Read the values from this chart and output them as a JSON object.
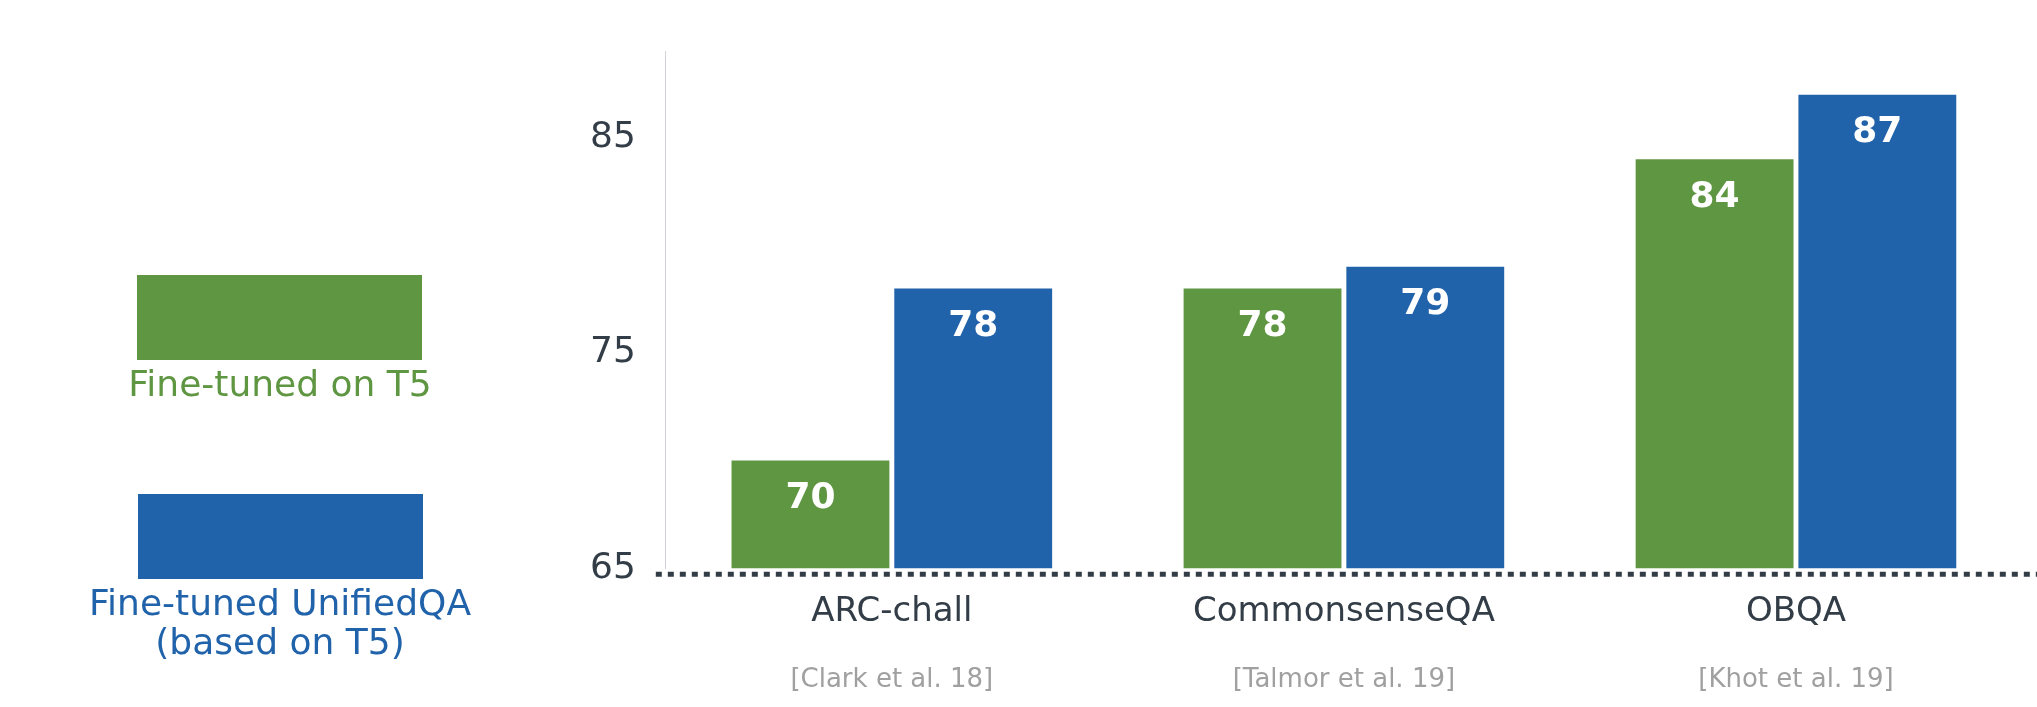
{
  "chart_data": {
    "type": "bar",
    "categories": [
      "ARC-chall",
      "CommonsenseQA",
      "OBQA"
    ],
    "series": [
      {
        "name": "Fine-tuned on T5",
        "color": "#5f9642",
        "values": [
          70,
          78,
          84
        ]
      },
      {
        "name": "Fine-tuned UnifiedQA (based on T5)",
        "color": "#2163aa",
        "values": [
          78,
          79,
          87
        ]
      }
    ],
    "ylim": [
      65,
      89
    ],
    "yticks": [
      65,
      75,
      85
    ],
    "grid": false,
    "legend": "left",
    "data_labels": true,
    "annotations": [
      {
        "text": "[Clark et al. 18]",
        "x": "ARC-chall"
      },
      {
        "text": "[Talmor et al. 19]",
        "x": "CommonsenseQA"
      },
      {
        "text": "[Khot et al. 19]",
        "x": "OBQA"
      }
    ]
  }
}
